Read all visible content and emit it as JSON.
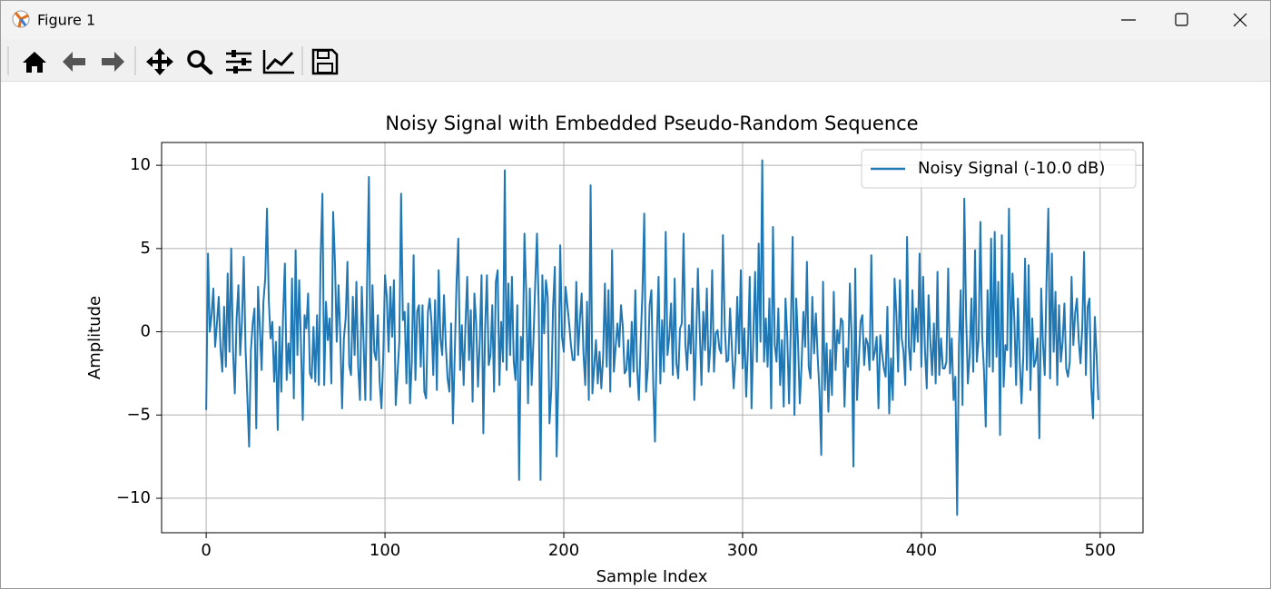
{
  "window": {
    "title": "Figure 1"
  },
  "chart_data": {
    "type": "line",
    "title": "Noisy Signal with Embedded Pseudo-Random Sequence",
    "x_label": "Sample Index",
    "y_label": "Amplitude",
    "xlim": [
      -24.95,
      523.95
    ],
    "ylim": [
      -12.07,
      11.37
    ],
    "xticks": [
      0,
      100,
      200,
      300,
      400,
      500
    ],
    "yticks": [
      {
        "value": -10,
        "label": "−10"
      },
      {
        "value": -5,
        "label": "−5"
      },
      0,
      5,
      10
    ],
    "grid": true,
    "legend_position": "upper-right",
    "x": [
      0,
      1,
      2,
      3,
      4,
      5,
      6,
      7,
      8,
      9,
      10,
      11,
      12,
      13,
      14,
      15,
      16,
      17,
      18,
      19,
      20,
      21,
      22,
      23,
      24,
      25,
      26,
      27,
      28,
      29,
      30,
      31,
      32,
      33,
      34,
      35,
      36,
      37,
      38,
      39,
      40,
      41,
      42,
      43,
      44,
      45,
      46,
      47,
      48,
      49,
      50,
      51,
      52,
      53,
      54,
      55,
      56,
      57,
      58,
      59,
      60,
      61,
      62,
      63,
      64,
      65,
      66,
      67,
      68,
      69,
      70,
      71,
      72,
      73,
      74,
      75,
      76,
      77,
      78,
      79,
      80,
      81,
      82,
      83,
      84,
      85,
      86,
      87,
      88,
      89,
      90,
      91,
      92,
      93,
      94,
      95,
      96,
      97,
      98,
      99,
      100,
      101,
      102,
      103,
      104,
      105,
      106,
      107,
      108,
      109,
      110,
      111,
      112,
      113,
      114,
      115,
      116,
      117,
      118,
      119,
      120,
      121,
      122,
      123,
      124,
      125,
      126,
      127,
      128,
      129,
      130,
      131,
      132,
      133,
      134,
      135,
      136,
      137,
      138,
      139,
      140,
      141,
      142,
      143,
      144,
      145,
      146,
      147,
      148,
      149,
      150,
      151,
      152,
      153,
      154,
      155,
      156,
      157,
      158,
      159,
      160,
      161,
      162,
      163,
      164,
      165,
      166,
      167,
      168,
      169,
      170,
      171,
      172,
      173,
      174,
      175,
      176,
      177,
      178,
      179,
      180,
      181,
      182,
      183,
      184,
      185,
      186,
      187,
      188,
      189,
      190,
      191,
      192,
      193,
      194,
      195,
      196,
      197,
      198,
      199,
      200,
      201,
      202,
      203,
      204,
      205,
      206,
      207,
      208,
      209,
      210,
      211,
      212,
      213,
      214,
      215,
      216,
      217,
      218,
      219,
      220,
      221,
      222,
      223,
      224,
      225,
      226,
      227,
      228,
      229,
      230,
      231,
      232,
      233,
      234,
      235,
      236,
      237,
      238,
      239,
      240,
      241,
      242,
      243,
      244,
      245,
      246,
      247,
      248,
      249,
      250,
      251,
      252,
      253,
      254,
      255,
      256,
      257,
      258,
      259,
      260,
      261,
      262,
      263,
      264,
      265,
      266,
      267,
      268,
      269,
      270,
      271,
      272,
      273,
      274,
      275,
      276,
      277,
      278,
      279,
      280,
      281,
      282,
      283,
      284,
      285,
      286,
      287,
      288,
      289,
      290,
      291,
      292,
      293,
      294,
      295,
      296,
      297,
      298,
      299,
      300,
      301,
      302,
      303,
      304,
      305,
      306,
      307,
      308,
      309,
      310,
      311,
      312,
      313,
      314,
      315,
      316,
      317,
      318,
      319,
      320,
      321,
      322,
      323,
      324,
      325,
      326,
      327,
      328,
      329,
      330,
      331,
      332,
      333,
      334,
      335,
      336,
      337,
      338,
      339,
      340,
      341,
      342,
      343,
      344,
      345,
      346,
      347,
      348,
      349,
      350,
      351,
      352,
      353,
      354,
      355,
      356,
      357,
      358,
      359,
      360,
      361,
      362,
      363,
      364,
      365,
      366,
      367,
      368,
      369,
      370,
      371,
      372,
      373,
      374,
      375,
      376,
      377,
      378,
      379,
      380,
      381,
      382,
      383,
      384,
      385,
      386,
      387,
      388,
      389,
      390,
      391,
      392,
      393,
      394,
      395,
      396,
      397,
      398,
      399,
      400,
      401,
      402,
      403,
      404,
      405,
      406,
      407,
      408,
      409,
      410,
      411,
      412,
      413,
      414,
      415,
      416,
      417,
      418,
      419,
      420,
      421,
      422,
      423,
      424,
      425,
      426,
      427,
      428,
      429,
      430,
      431,
      432,
      433,
      434,
      435,
      436,
      437,
      438,
      439,
      440,
      441,
      442,
      443,
      444,
      445,
      446,
      447,
      448,
      449,
      450,
      451,
      452,
      453,
      454,
      455,
      456,
      457,
      458,
      459,
      460,
      461,
      462,
      463,
      464,
      465,
      466,
      467,
      468,
      469,
      470,
      471,
      472,
      473,
      474,
      475,
      476,
      477,
      478,
      479,
      480,
      481,
      482,
      483,
      484,
      485,
      486,
      487,
      488,
      489,
      490,
      491,
      492,
      493,
      494,
      495,
      496,
      497,
      498,
      499
    ],
    "series": [
      {
        "name": "Noisy Signal (-10.0 dB)",
        "color": "#1f77b4",
        "values": [
          -4.7,
          4.7,
          0,
          1,
          2.6,
          -0.9,
          0.5,
          2.1,
          -1,
          -2.4,
          1.5,
          -2.1,
          3.5,
          -1.2,
          5,
          -1.2,
          -3.7,
          0.8,
          2.8,
          -1.4,
          0.6,
          4.5,
          -1,
          -3.9,
          -6.9,
          -1.1,
          0.5,
          1.4,
          -5.8,
          2.7,
          0.2,
          -2.3,
          1.8,
          3.2,
          7.4,
          1.9,
          -0.4,
          0.6,
          -3,
          -0.6,
          -5.9,
          0.3,
          -3.6,
          1,
          4.1,
          -2.9,
          -0.7,
          -2.5,
          3.2,
          -4,
          4.9,
          -1.4,
          3.1,
          -0.7,
          -5.3,
          1,
          0.2,
          2.3,
          -2.5,
          -2.8,
          0.3,
          -3,
          1,
          -3.2,
          4.5,
          8.3,
          -3.2,
          1.8,
          -0.5,
          0.8,
          -3.1,
          7.2,
          4.2,
          -0.6,
          2.8,
          -0.3,
          -4.6,
          -0.4,
          0.8,
          4.2,
          -2,
          -2.6,
          2.1,
          -1.4,
          3,
          -2.1,
          -4.1,
          2.7,
          -0.5,
          -4.1,
          3.1,
          9.3,
          -4.1,
          2.8,
          -1.2,
          -1.7,
          1,
          -3,
          -4.6,
          -1.6,
          3.4,
          2.1,
          -1.2,
          2.7,
          -0.3,
          3.1,
          -4.4,
          -2.5,
          -0.6,
          8.3,
          0.7,
          1.2,
          -3.1,
          1.7,
          -4.3,
          -1.8,
          4.6,
          -2.9,
          1.2,
          1.6,
          -2.1,
          1.6,
          -3.6,
          -4,
          1.2,
          2,
          0.6,
          -2.6,
          1.9,
          -3.5,
          3.7,
          -0.4,
          -1.4,
          2.2,
          -0.8,
          -2.8,
          -3.6,
          0.5,
          -5.5,
          -1.4,
          2.9,
          5.6,
          -2.3,
          0.4,
          -3.2,
          0.4,
          3.3,
          -1.7,
          1.3,
          -4.2,
          2.3,
          0.5,
          -3.3,
          -0.6,
          3.4,
          -6.1,
          0.2,
          3.4,
          -2,
          -1.4,
          1.6,
          -3.6,
          3,
          3.7,
          -3.2,
          0.6,
          -1.8,
          9.7,
          -2.3,
          2.9,
          -1.4,
          3.3,
          -1.8,
          -2.9,
          1.6,
          -8.9,
          -0.3,
          -1.7,
          5.9,
          2.3,
          -4.3,
          2.6,
          -3.2,
          -0.6,
          2.8,
          5.9,
          1.4,
          -8.9,
          3.4,
          -0.1,
          3.1,
          2.1,
          -5.5,
          -3.5,
          1.5,
          3.9,
          -7.5,
          -2.6,
          5.2,
          -0.3,
          -1.2,
          2.7,
          1.6,
          0.5,
          -0.8,
          -1.7,
          -1.7,
          3,
          -1.4,
          0.7,
          2.3,
          -1.3,
          -3.2,
          1.8,
          -4.1,
          8.8,
          -3.7,
          -2.1,
          -0.5,
          -3.1,
          -1.2,
          -3.4,
          -1.5,
          2.9,
          -2.1,
          2.5,
          -3.6,
          4.9,
          -2.4,
          -0.9,
          0.5,
          -0.9,
          1.6,
          0.3,
          -2.5,
          -2.3,
          -0.5,
          -3.3,
          0.6,
          -2.4,
          2.5,
          -2.2,
          -4.1,
          -0.6,
          2.4,
          7.1,
          -3.6,
          -2.2,
          1.6,
          2.5,
          -3,
          -6.6,
          -0.5,
          3.3,
          -3.1,
          0.7,
          -2.4,
          6,
          -1.4,
          -0.3,
          1.7,
          -2.6,
          3.2,
          -1.9,
          -2.8,
          0.2,
          0.5,
          5.9,
          -0.7,
          -2.3,
          0.4,
          -1.3,
          2.6,
          -4.1,
          -0.6,
          3.8,
          0.2,
          -3.2,
          1.2,
          -1.1,
          2.6,
          -2.4,
          -0.8,
          3.7,
          -2.4,
          -0.1,
          0.1,
          -1,
          -1.3,
          5.8,
          0.4,
          -1.8,
          -1.7,
          1.4,
          -0.9,
          -3.4,
          -1.6,
          2.1,
          -1.3,
          3.7,
          -2.2,
          0.2,
          -3.9,
          -1,
          3.3,
          -4.6,
          -0.3,
          3.6,
          -1.8,
          5.3,
          -0.6,
          10.3,
          -1.8,
          0.8,
          -2.1,
          2,
          -4.6,
          6.3,
          -0.8,
          -1.8,
          1.4,
          -3.2,
          -0.5,
          -4.5,
          2,
          -0.3,
          -4.3,
          0.4,
          5.7,
          -5,
          2,
          -0.6,
          -4.3,
          -2,
          1.2,
          -0.9,
          4.2,
          -2.1,
          -2.8,
          2.1,
          -1.3,
          1.1,
          -1.5,
          -3.6,
          -7.4,
          3,
          -3.5,
          -0.7,
          -4.8,
          -1.1,
          -3.8,
          2.4,
          -2.3,
          0.1,
          -0.7,
          0.8,
          0.6,
          -4.5,
          -1,
          -2.1,
          2.9,
          -0.4,
          -8.1,
          3.8,
          -4.1,
          -1.7,
          0.6,
          1,
          -2,
          -0.4,
          -0.7,
          -2.3,
          4.6,
          -1.7,
          -1.2,
          -0.3,
          -4.6,
          -0.2,
          -1.3,
          -2.2,
          -2.7,
          1.5,
          -4.9,
          -1.6,
          -4.1,
          3.2,
          1.1,
          -2.4,
          3.1,
          -0.4,
          -1.2,
          -3.2,
          5.7,
          -0.9,
          -2.3,
          2.5,
          -1.2,
          1.4,
          -0.6,
          4.7,
          -2.1,
          3.3,
          -1.1,
          -3.4,
          2.2,
          -0.5,
          -2.6,
          0.5,
          -3.1,
          3.6,
          -2.6,
          -0.4,
          -2.2,
          -2.2,
          -1.8,
          3.8,
          -2.5,
          -0.4,
          -4.1,
          -2.7,
          -11,
          -0.9,
          2.5,
          -4.4,
          8,
          1.1,
          -3.1,
          -1.4,
          2,
          -2.4,
          4.9,
          -1.8,
          -0.5,
          6.6,
          -0.2,
          -2.3,
          -5.7,
          2.5,
          -2.1,
          5.6,
          -2.4,
          6,
          -1.5,
          3,
          -6.2,
          5.8,
          -3.3,
          -0.8,
          -1.1,
          7.4,
          -2.1,
          3.5,
          0.7,
          -3.2,
          2,
          -1.7,
          -4.3,
          -1.5,
          4.4,
          -2.3,
          4,
          -3.5,
          0.8,
          -2.1,
          -1.7,
          -0.4,
          -6.4,
          2.6,
          -0.7,
          -2.6,
          3.1,
          7.4,
          -2.8,
          4.7,
          -1.2,
          2.4,
          -3.2,
          1.6,
          -1.8,
          -0.6,
          1.7,
          -2.2,
          -2.7,
          -1.8,
          3.3,
          -0.8,
          1.1,
          2,
          -0.5,
          -1.9,
          0.3,
          4.8,
          -2.6,
          1.5,
          2,
          -3.3,
          -5.2,
          0.9,
          -1.4,
          -4.1
        ]
      }
    ]
  }
}
